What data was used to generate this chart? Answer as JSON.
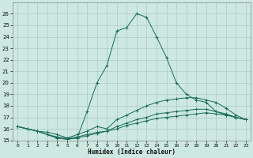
{
  "xlabel": "Humidex (Indice chaleur)",
  "background_color": "#cce8e0",
  "grid_color": "#aaccC4",
  "line_color": "#1a6b5a",
  "x_hours": [
    0,
    1,
    2,
    3,
    4,
    5,
    6,
    7,
    8,
    9,
    10,
    11,
    12,
    13,
    14,
    15,
    16,
    17,
    18,
    19,
    20,
    21,
    22,
    23
  ],
  "line1": [
    16.2,
    16.0,
    15.8,
    15.5,
    15.2,
    15.1,
    15.2,
    17.5,
    20.0,
    21.5,
    24.5,
    24.8,
    26.0,
    25.7,
    24.0,
    22.2,
    20.0,
    19.0,
    18.5,
    18.3,
    17.5,
    17.2,
    17.0,
    16.8
  ],
  "line2": [
    16.2,
    16.0,
    15.8,
    15.7,
    15.5,
    15.2,
    15.5,
    15.8,
    16.2,
    16.0,
    16.8,
    17.2,
    17.6,
    18.0,
    18.3,
    18.5,
    18.6,
    18.7,
    18.7,
    18.5,
    18.3,
    17.8,
    17.2,
    16.8
  ],
  "line3": [
    16.2,
    16.0,
    15.8,
    15.5,
    15.2,
    15.1,
    15.2,
    15.4,
    15.6,
    15.8,
    16.0,
    16.3,
    16.5,
    16.7,
    16.9,
    17.0,
    17.1,
    17.2,
    17.3,
    17.4,
    17.3,
    17.2,
    17.0,
    16.8
  ],
  "line4": [
    16.2,
    16.0,
    15.8,
    15.5,
    15.3,
    15.2,
    15.3,
    15.5,
    15.7,
    15.8,
    16.2,
    16.5,
    16.8,
    17.0,
    17.3,
    17.4,
    17.5,
    17.6,
    17.7,
    17.7,
    17.5,
    17.3,
    17.0,
    16.8
  ],
  "ylim": [
    15,
    27
  ],
  "xlim": [
    -0.5,
    23.5
  ],
  "yticks": [
    15,
    16,
    17,
    18,
    19,
    20,
    21,
    22,
    23,
    24,
    25,
    26
  ],
  "xticks": [
    0,
    1,
    2,
    3,
    4,
    5,
    6,
    7,
    8,
    9,
    10,
    11,
    12,
    13,
    14,
    15,
    16,
    17,
    18,
    19,
    20,
    21,
    22,
    23
  ]
}
